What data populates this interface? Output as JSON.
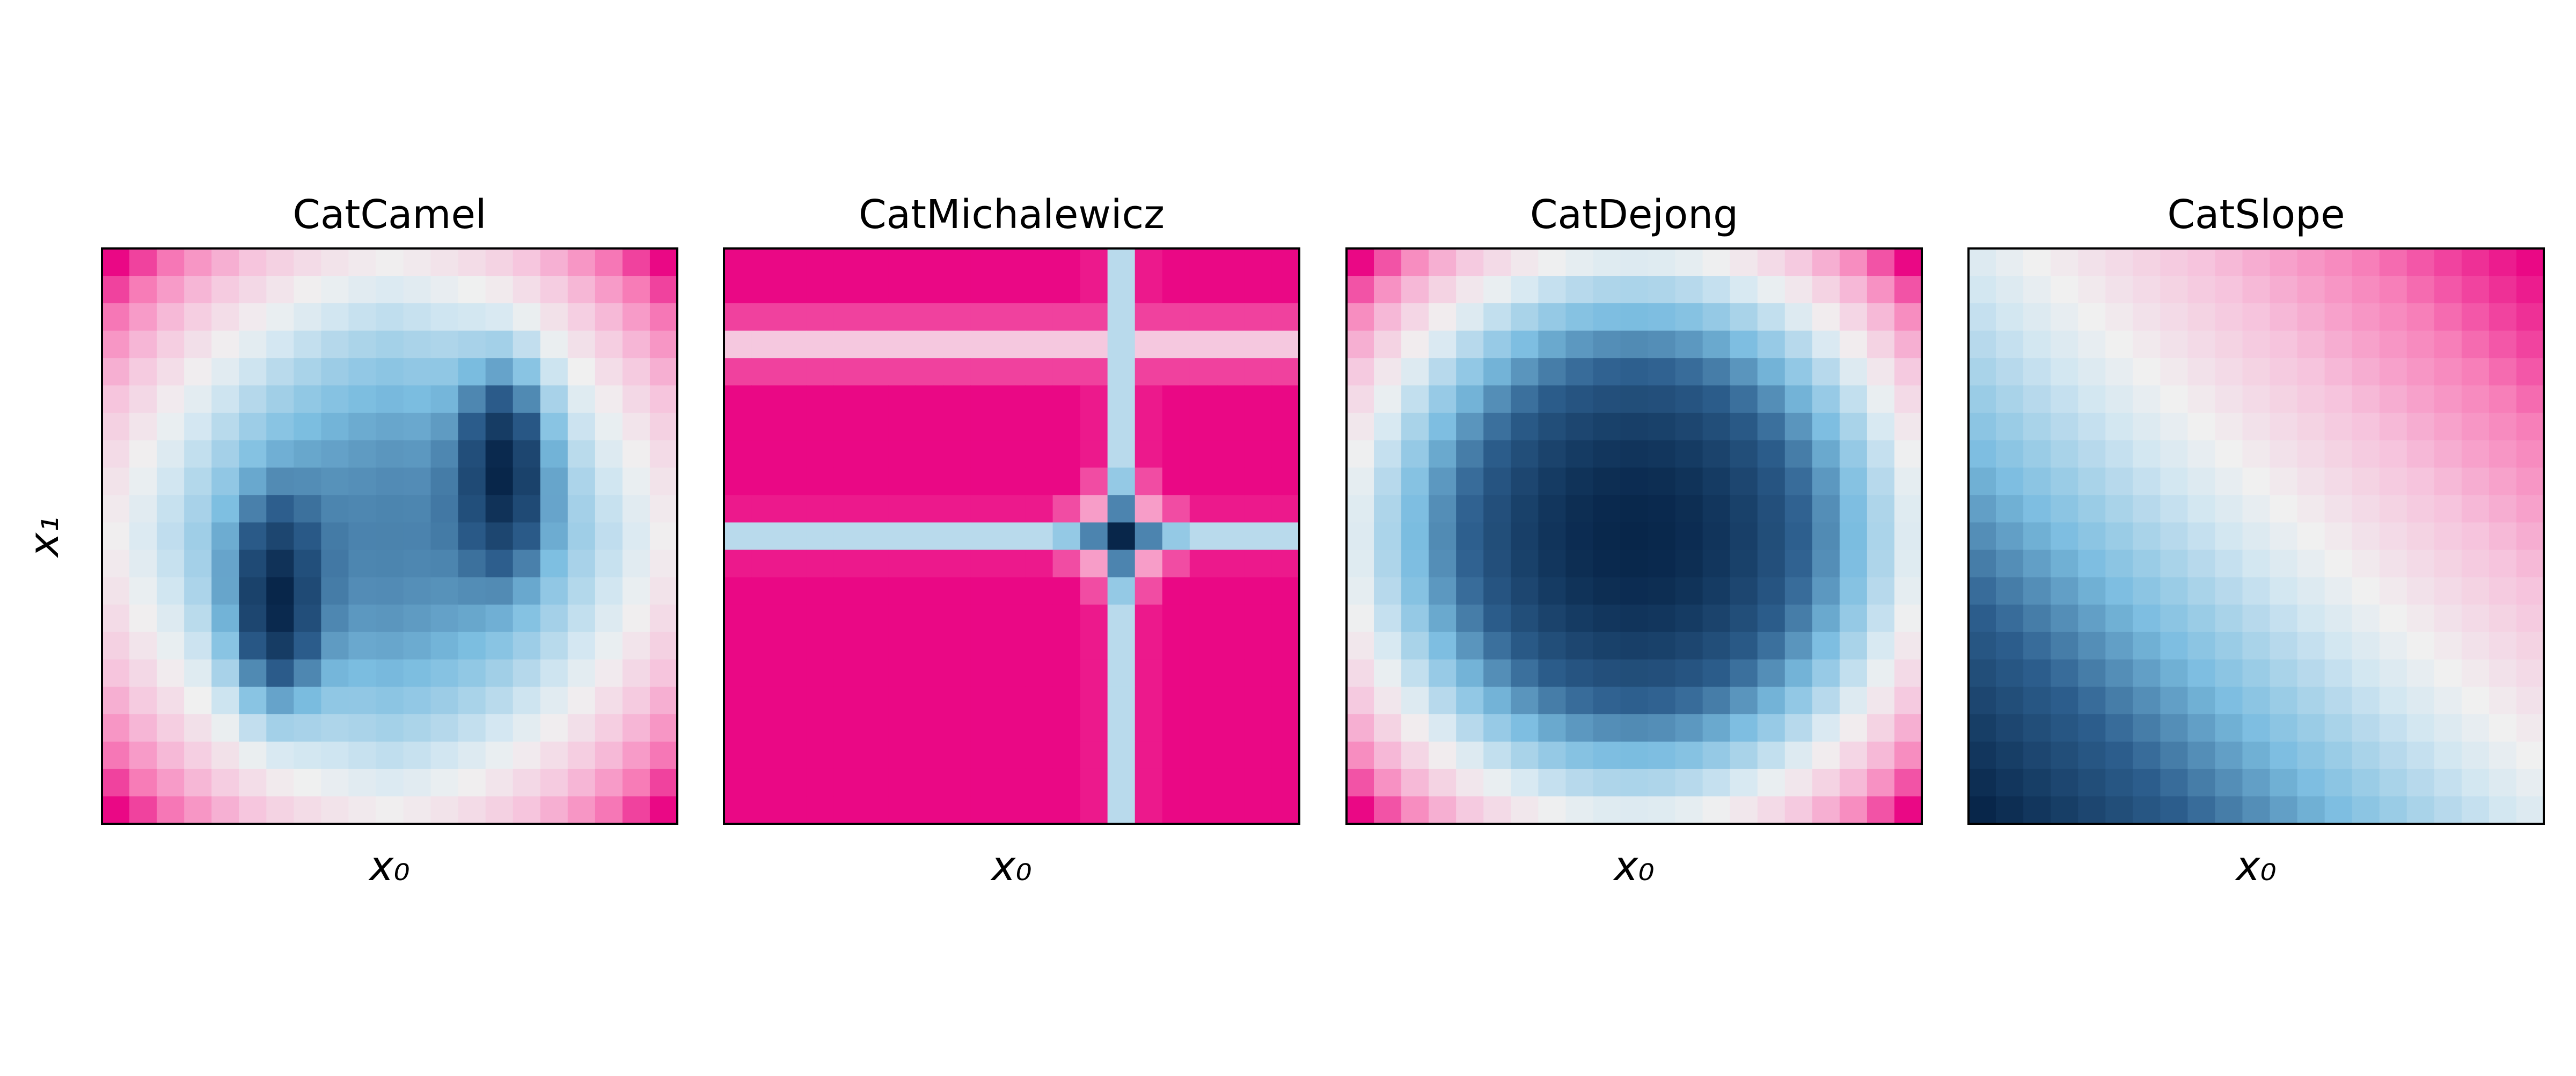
{
  "figure": {
    "shared_ylabel": "x₁",
    "grid": false,
    "colormap_note": "diverging: dark navy (low) to white (middle) to magenta (high)"
  },
  "colors": {
    "low": "#08264a",
    "mid_low": "#7bbde0",
    "mid": "#f0f0f0",
    "mid_high": "#f77fb9",
    "high": "#ea0885",
    "frame": "#000000"
  },
  "chart_data": [
    {
      "type": "heatmap",
      "title": "CatCamel",
      "xlabel": "x₀",
      "ylabel": "x₁",
      "grid_size": [
        21,
        21
      ],
      "function": "camel",
      "color_scale": "value_normalized_0_to_1"
    },
    {
      "type": "heatmap",
      "title": "CatMichalewicz",
      "xlabel": "x₀",
      "ylabel": "",
      "grid_size": [
        21,
        21
      ],
      "function": "michalewicz",
      "color_scale": "value_normalized_0_to_1"
    },
    {
      "type": "heatmap",
      "title": "CatDejong",
      "xlabel": "x₀",
      "ylabel": "",
      "grid_size": [
        21,
        21
      ],
      "function": "dejong",
      "color_scale": "value_normalized_0_to_1"
    },
    {
      "type": "heatmap",
      "title": "CatSlope",
      "xlabel": "x₀",
      "ylabel": "",
      "grid_size": [
        21,
        21
      ],
      "function": "slope",
      "color_scale": "value_normalized_0_to_1"
    }
  ]
}
